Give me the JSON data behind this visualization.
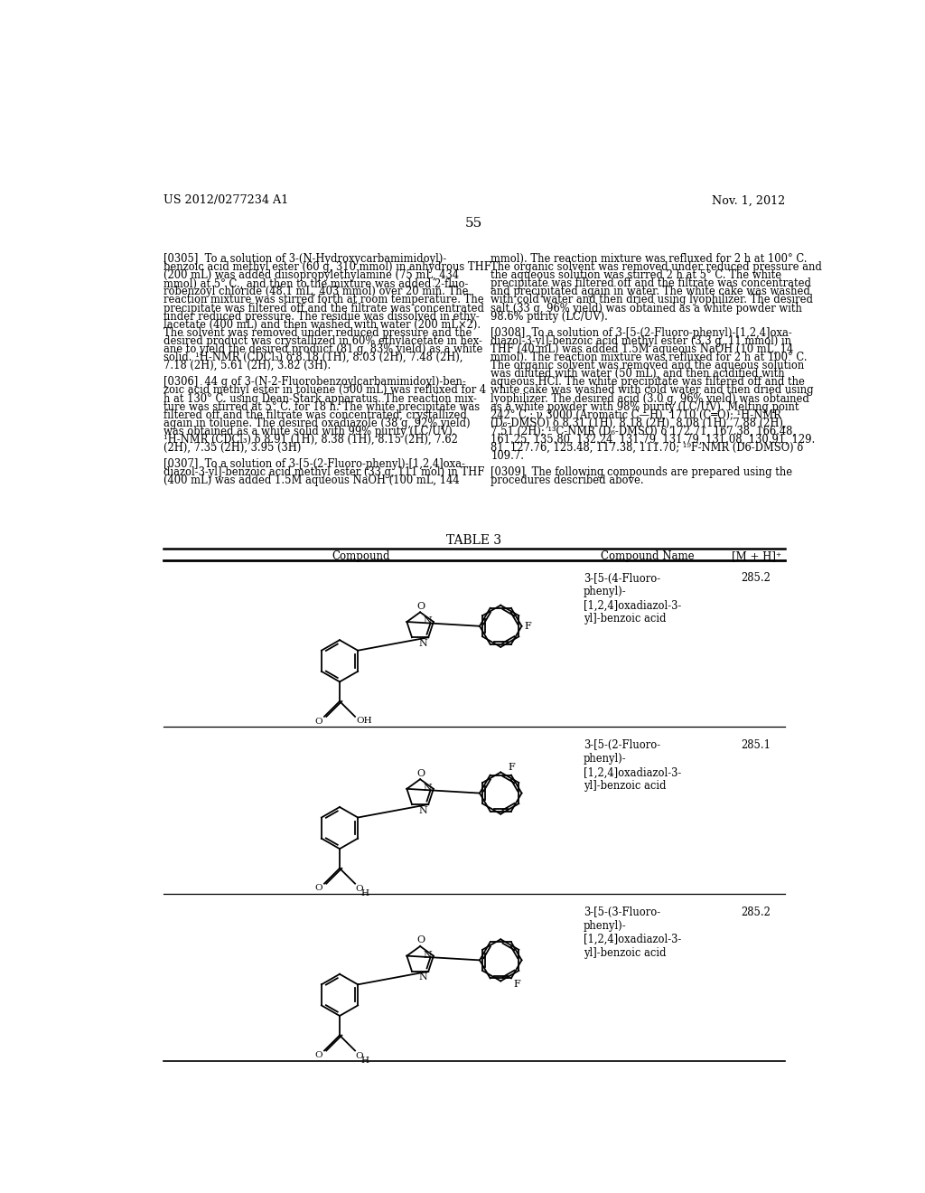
{
  "header_left": "US 2012/0277234 A1",
  "header_right": "Nov. 1, 2012",
  "page_number": "55",
  "table_title": "TABLE 3",
  "col1_header": "Compound",
  "col2_header": "Compound Name",
  "col3_header": "[M + H]⁺",
  "row1_name": "3-[5-(4-Fluoro-\nphenyl)-\n[1,2,4]oxadiazol-3-\nyl]-benzoic acid",
  "row1_mh": "285.2",
  "row2_name": "3-[5-(2-Fluoro-\nphenyl)-\n[1,2,4]oxadiazol-3-\nyl]-benzoic acid",
  "row2_mh": "285.1",
  "row3_name": "3-[5-(3-Fluoro-\nphenyl)-\n[1,2,4]oxadiazol-3-\nyl]-benzoic acid",
  "row3_mh": "285.2",
  "background_color": "#ffffff",
  "text_color": "#000000",
  "lw": 1.3
}
